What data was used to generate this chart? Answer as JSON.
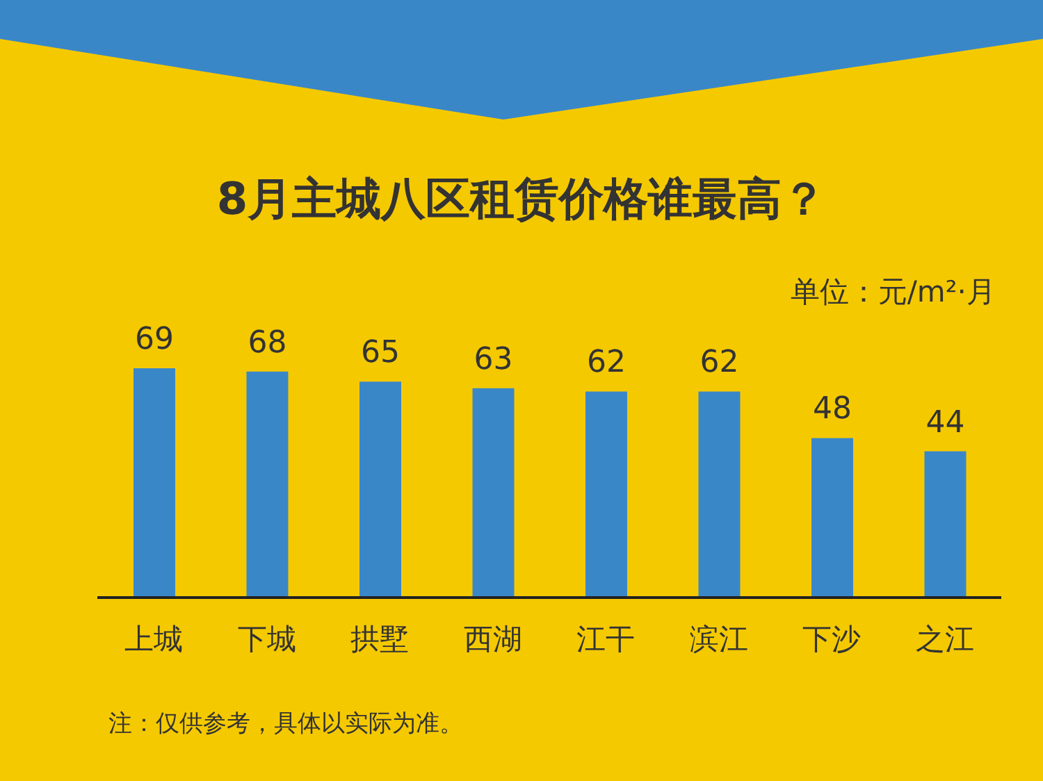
{
  "chart_data": {
    "type": "bar",
    "title": "8月主城八区租赁价格谁最高？",
    "ylabel": "单位：元/m²·月",
    "categories": [
      "上城",
      "下城",
      "拱墅",
      "西湖",
      "江干",
      "滨江",
      "下沙",
      "之江"
    ],
    "values": [
      69,
      68,
      65,
      63,
      62,
      62,
      48,
      44
    ],
    "color": "#3a87c8",
    "data_labels": true,
    "grid": false,
    "legend": false,
    "annotations": [
      "注：仅供参考，具体以实际为准。"
    ]
  }
}
